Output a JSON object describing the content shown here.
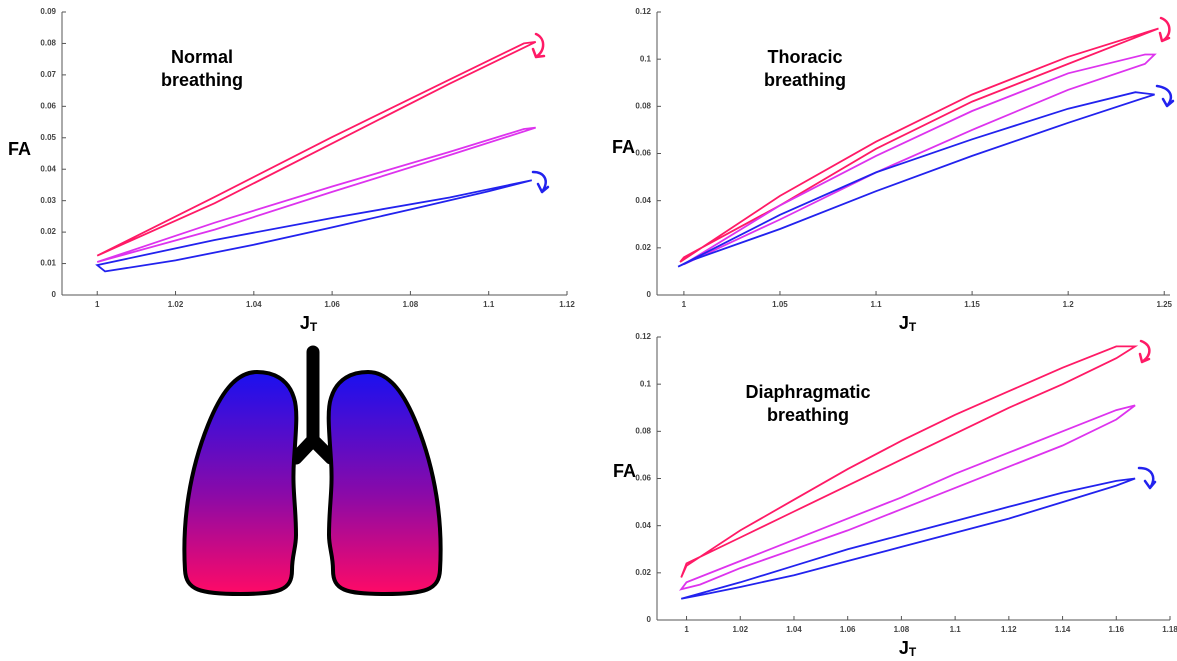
{
  "chart_data": [
    {
      "type": "loop",
      "annotation": [
        "Normal",
        "breathing"
      ],
      "y_label": "FA",
      "x_label": "J",
      "x_label_sub": "T",
      "xlim": [
        0.991,
        1.12
      ],
      "ylim": [
        0,
        0.09
      ],
      "xticks": [
        1,
        1.02,
        1.04,
        1.06,
        1.08,
        1.1,
        1.12
      ],
      "yticks": [
        0,
        0.01,
        0.02,
        0.03,
        0.04,
        0.05,
        0.06,
        0.07,
        0.08,
        0.09
      ],
      "series": [
        {
          "color": "#ff1a66",
          "x": [
            1.0,
            1.03,
            1.06,
            1.09,
            1.109,
            1.112,
            1.09,
            1.06,
            1.03,
            1.0
          ],
          "values": [
            0.0125,
            0.0312,
            0.0502,
            0.0685,
            0.08,
            0.0805,
            0.0672,
            0.0482,
            0.0292,
            0.0125
          ]
        },
        {
          "color": "#dd33ee",
          "x": [
            1.0,
            1.03,
            1.06,
            1.09,
            1.109,
            1.112,
            1.09,
            1.06,
            1.03,
            1.0
          ],
          "values": [
            0.0105,
            0.023,
            0.0345,
            0.0455,
            0.0528,
            0.0532,
            0.0445,
            0.0328,
            0.0208,
            0.0105
          ]
        },
        {
          "color": "#2222ee",
          "x": [
            1.002,
            1.02,
            1.04,
            1.06,
            1.08,
            1.1,
            1.111,
            1.09,
            1.06,
            1.03,
            1.0,
            1.002
          ],
          "values": [
            0.0075,
            0.011,
            0.016,
            0.0215,
            0.0272,
            0.033,
            0.0365,
            0.031,
            0.0245,
            0.0175,
            0.0095,
            0.0075
          ]
        }
      ]
    },
    {
      "type": "loop",
      "annotation": [
        "Thoracic",
        "breathing"
      ],
      "y_label": "FA",
      "x_label": "J",
      "x_label_sub": "T",
      "xlim": [
        0.986,
        1.253
      ],
      "ylim": [
        0,
        0.12
      ],
      "xticks": [
        1,
        1.05,
        1.1,
        1.15,
        1.2,
        1.25
      ],
      "yticks": [
        0,
        0.02,
        0.04,
        0.06,
        0.08,
        0.1,
        0.12
      ],
      "series": [
        {
          "color": "#ff1a66",
          "x": [
            0.998,
            1.05,
            1.1,
            1.15,
            1.2,
            1.247,
            1.2,
            1.15,
            1.1,
            1.05,
            1.0,
            0.998
          ],
          "values": [
            0.014,
            0.042,
            0.065,
            0.085,
            0.101,
            0.113,
            0.098,
            0.082,
            0.062,
            0.038,
            0.016,
            0.014
          ]
        },
        {
          "color": "#dd33ee",
          "x": [
            1.0,
            1.05,
            1.1,
            1.15,
            1.2,
            1.24,
            1.245,
            1.24,
            1.2,
            1.15,
            1.1,
            1.05,
            1.0
          ],
          "values": [
            0.013,
            0.038,
            0.059,
            0.078,
            0.094,
            0.102,
            0.102,
            0.098,
            0.087,
            0.07,
            0.052,
            0.032,
            0.013
          ]
        },
        {
          "color": "#2222ee",
          "x": [
            0.997,
            1.05,
            1.1,
            1.15,
            1.2,
            1.235,
            1.245,
            1.2,
            1.15,
            1.1,
            1.05,
            1.005
          ],
          "values": [
            0.012,
            0.034,
            0.052,
            0.066,
            0.079,
            0.086,
            0.085,
            0.073,
            0.059,
            0.044,
            0.028,
            0.015
          ]
        }
      ]
    },
    {
      "type": "loop",
      "annotation": [
        "Diaphragmatic",
        "breathing"
      ],
      "y_label": "FA",
      "x_label": "J",
      "x_label_sub": "T",
      "xlim": [
        0.989,
        1.18
      ],
      "ylim": [
        0,
        0.12
      ],
      "xticks": [
        1,
        1.02,
        1.04,
        1.06,
        1.08,
        1.1,
        1.12,
        1.14,
        1.16,
        1.18
      ],
      "yticks": [
        0,
        0.02,
        0.04,
        0.06,
        0.08,
        0.1,
        0.12
      ],
      "series": [
        {
          "color": "#ff1a66",
          "x": [
            0.998,
            1.0,
            1.02,
            1.04,
            1.06,
            1.08,
            1.1,
            1.12,
            1.14,
            1.16,
            1.167,
            1.16,
            1.14,
            1.12,
            1.1,
            1.08,
            1.06,
            1.04,
            1.02,
            1.0,
            0.998
          ],
          "values": [
            0.018,
            0.023,
            0.038,
            0.051,
            0.064,
            0.076,
            0.087,
            0.097,
            0.107,
            0.116,
            0.116,
            0.111,
            0.1,
            0.09,
            0.079,
            0.068,
            0.057,
            0.046,
            0.035,
            0.024,
            0.018
          ]
        },
        {
          "color": "#dd33ee",
          "x": [
            0.998,
            1.0,
            1.02,
            1.04,
            1.06,
            1.08,
            1.1,
            1.12,
            1.14,
            1.16,
            1.167,
            1.16,
            1.14,
            1.12,
            1.1,
            1.08,
            1.06,
            1.04,
            1.02,
            1.005
          ],
          "values": [
            0.013,
            0.016,
            0.025,
            0.034,
            0.043,
            0.052,
            0.062,
            0.071,
            0.08,
            0.089,
            0.091,
            0.085,
            0.074,
            0.065,
            0.056,
            0.047,
            0.038,
            0.03,
            0.022,
            0.015
          ]
        },
        {
          "color": "#2222ee",
          "x": [
            0.998,
            1.02,
            1.04,
            1.06,
            1.08,
            1.1,
            1.12,
            1.14,
            1.16,
            1.167,
            1.16,
            1.14,
            1.12,
            1.1,
            1.08,
            1.06,
            1.04,
            1.02,
            1.007
          ],
          "values": [
            0.009,
            0.016,
            0.023,
            0.03,
            0.036,
            0.042,
            0.048,
            0.054,
            0.059,
            0.06,
            0.057,
            0.05,
            0.043,
            0.037,
            0.031,
            0.025,
            0.019,
            0.014,
            0.011
          ]
        }
      ]
    }
  ]
}
